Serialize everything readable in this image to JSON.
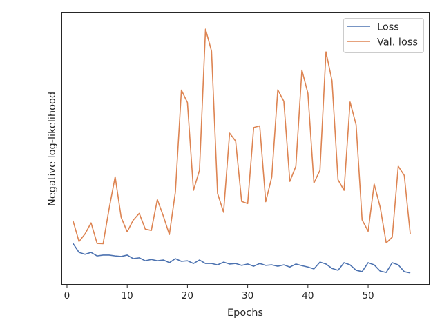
{
  "chart_data": {
    "type": "line",
    "title": "",
    "xlabel": "Epochs",
    "ylabel": "Negative log-likelihood",
    "xlim": [
      -0.8,
      60.2
    ],
    "ylim": [
      0,
      100
    ],
    "y_ticks_shown": false,
    "x_ticks": [
      0,
      10,
      20,
      30,
      40,
      50
    ],
    "grid": false,
    "legend_position": "top-right",
    "x": [
      1,
      2,
      3,
      4,
      5,
      6,
      7,
      8,
      9,
      10,
      11,
      12,
      13,
      14,
      15,
      16,
      17,
      18,
      19,
      20,
      21,
      22,
      23,
      24,
      25,
      26,
      27,
      28,
      29,
      30,
      31,
      32,
      33,
      34,
      35,
      36,
      37,
      38,
      39,
      40,
      41,
      42,
      43,
      44,
      45,
      46,
      47,
      48,
      49,
      50,
      51,
      52,
      53,
      54,
      55,
      56,
      57
    ],
    "series": [
      {
        "name": "Loss",
        "color": "#4c72b0",
        "values": [
          15.0,
          11.7,
          11.0,
          11.7,
          10.4,
          10.7,
          10.7,
          10.4,
          10.2,
          10.7,
          9.4,
          9.7,
          8.6,
          9.1,
          8.6,
          8.9,
          7.9,
          9.4,
          8.4,
          8.6,
          7.6,
          8.9,
          7.6,
          7.6,
          7.1,
          8.1,
          7.4,
          7.6,
          6.9,
          7.4,
          6.6,
          7.6,
          6.9,
          7.1,
          6.6,
          7.1,
          6.3,
          7.4,
          6.8,
          6.3,
          5.6,
          8.1,
          7.4,
          5.8,
          5.1,
          7.9,
          7.1,
          5.1,
          4.6,
          7.9,
          7.1,
          4.8,
          4.3,
          7.9,
          7.1,
          4.6,
          4.1
        ]
      },
      {
        "name": "Val. loss",
        "color": "#dd8452",
        "values": [
          23.4,
          15.7,
          18.5,
          22.6,
          15.0,
          14.9,
          27.9,
          39.6,
          24.6,
          19.3,
          23.6,
          26.1,
          20.3,
          19.8,
          31.2,
          25.1,
          18.3,
          34.0,
          71.6,
          67.0,
          34.6,
          42.0,
          94.1,
          86.0,
          33.5,
          26.5,
          55.7,
          52.8,
          30.5,
          29.7,
          57.8,
          58.4,
          30.4,
          39.5,
          71.7,
          67.5,
          37.9,
          43.5,
          79.0,
          70.4,
          37.3,
          42.0,
          85.7,
          75.1,
          38.5,
          34.6,
          67.2,
          58.8,
          23.7,
          19.5,
          36.9,
          28.4,
          15.2,
          17.3,
          43.5,
          40.1,
          18.4
        ]
      }
    ]
  }
}
